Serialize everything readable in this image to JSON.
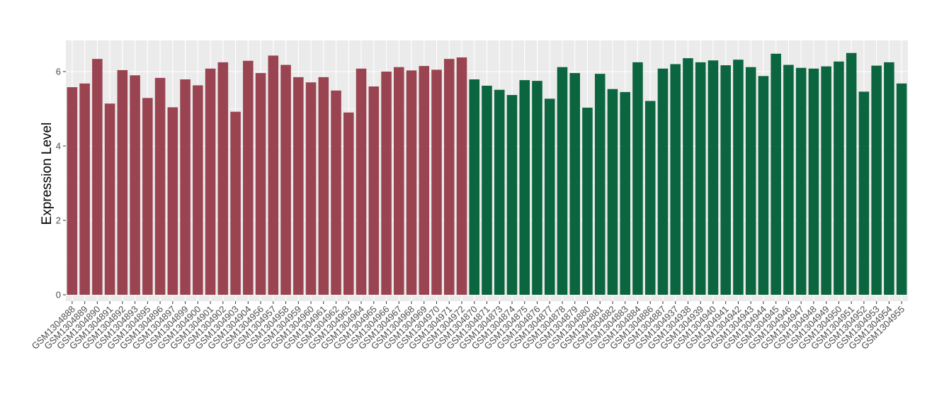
{
  "chart_data": {
    "type": "bar",
    "title": "",
    "xlabel": "",
    "ylabel": "Expression Level",
    "ylim": [
      0,
      6.8
    ],
    "yticks": [
      0,
      2,
      4,
      6
    ],
    "grid": true,
    "legend": "none",
    "categories": [
      "GSM1304888",
      "GSM1304889",
      "GSM1304890",
      "GSM1304891",
      "GSM1304892",
      "GSM1304893",
      "GSM1304895",
      "GSM1304896",
      "GSM1304897",
      "GSM1304899",
      "GSM1304900",
      "GSM1304901",
      "GSM1304902",
      "GSM1304903",
      "GSM1304904",
      "GSM1304956",
      "GSM1304957",
      "GSM1304958",
      "GSM1304959",
      "GSM1304960",
      "GSM1304961",
      "GSM1304962",
      "GSM1304963",
      "GSM1304964",
      "GSM1304965",
      "GSM1304966",
      "GSM1304967",
      "GSM1304968",
      "GSM1304969",
      "GSM1304970",
      "GSM1304971",
      "GSM1304972",
      "GSM1304870",
      "GSM1304871",
      "GSM1304873",
      "GSM1304874",
      "GSM1304875",
      "GSM1304876",
      "GSM1304877",
      "GSM1304878",
      "GSM1304879",
      "GSM1304880",
      "GSM1304881",
      "GSM1304882",
      "GSM1304883",
      "GSM1304884",
      "GSM1304886",
      "GSM1304887",
      "GSM1304937",
      "GSM1304938",
      "GSM1304939",
      "GSM1304940",
      "GSM1304941",
      "GSM1304942",
      "GSM1304943",
      "GSM1304944",
      "GSM1304945",
      "GSM1304946",
      "GSM1304947",
      "GSM1304948",
      "GSM1304949",
      "GSM1304950",
      "GSM1304951",
      "GSM1304952",
      "GSM1304953",
      "GSM1304954",
      "GSM1304955"
    ],
    "values": [
      5.58,
      5.68,
      6.34,
      5.14,
      6.04,
      5.9,
      5.29,
      5.83,
      5.04,
      5.79,
      5.63,
      6.08,
      6.25,
      4.92,
      6.29,
      5.96,
      6.43,
      6.18,
      5.85,
      5.71,
      5.85,
      5.49,
      4.9,
      6.08,
      5.6,
      6.0,
      6.12,
      6.03,
      6.15,
      6.05,
      6.34,
      6.38,
      5.79,
      5.62,
      5.51,
      5.37,
      5.77,
      5.75,
      5.27,
      6.12,
      5.96,
      5.03,
      5.94,
      5.53,
      5.45,
      6.25,
      5.21,
      6.08,
      6.2,
      6.36,
      6.25,
      6.3,
      6.17,
      6.32,
      6.12,
      5.88,
      6.48,
      6.18,
      6.1,
      6.08,
      6.14,
      6.27,
      6.5,
      5.46,
      6.16,
      6.25,
      5.68
    ],
    "group_sizes": [
      32,
      35
    ],
    "colors": {
      "group_1": "#9b4451",
      "group_2": "#0b6640",
      "panel_bg": "#ebebeb",
      "grid": "#ffffff",
      "tick_text": "#4d4d4d"
    }
  }
}
